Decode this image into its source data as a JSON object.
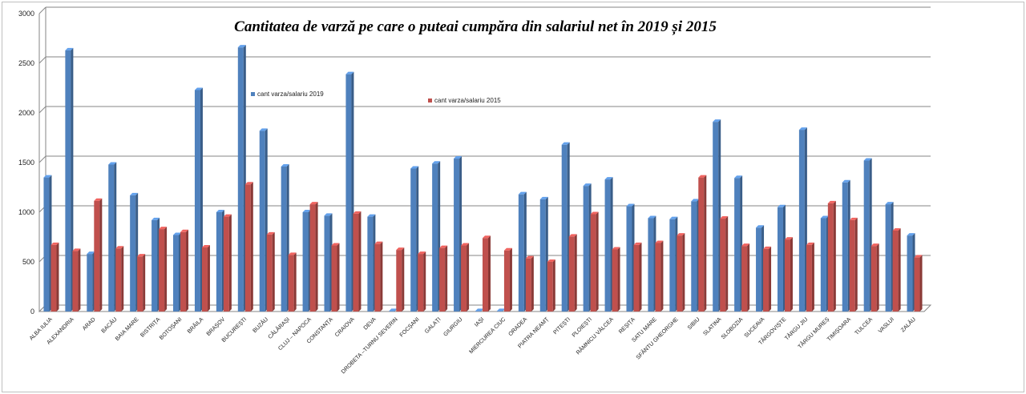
{
  "chart_data": {
    "type": "bar",
    "title": "Cantitatea de varză pe care o puteai cumpăra din salariul net în 2019 și 2015",
    "xlabel": "",
    "ylabel": "",
    "ylim": [
      0,
      3000
    ],
    "yticks": [
      0,
      500,
      1000,
      1500,
      2000,
      2500,
      3000
    ],
    "grid": true,
    "legend_position": "inside-top",
    "categories": [
      "ALBA IULIA",
      "ALEXANDRIA",
      "ARAD",
      "BACĂU",
      "BAIA MARE",
      "BISTRIȚA",
      "BOTOȘANI",
      "BRĂILA",
      "BRAȘOV",
      "BUCUREȘTI",
      "BUZĂU",
      "CĂLĂRAȘI",
      "CLUJ – NAPOCA",
      "CONSTANȚA",
      "CRAIOVA",
      "DEVA",
      "DROBETA –TURNU SEVERIN",
      "FOCȘANI",
      "GALAȚI",
      "GIURGIU",
      "IAȘI",
      "MIERCUREA CIUC",
      "ORADEA",
      "PIATRA NEAMȚ",
      "PITEȘTI",
      "PLOIEȘTI",
      "RÂMNICU VÂLCEA",
      "REȘIȚA",
      "SATU MARE",
      "SFÂNTU GHEORGHE",
      "SIBIU",
      "SLATINA",
      "SLOBOZIA",
      "SUCEAVA",
      "TÂRGOVIȘTE",
      "TÂRGU JIU",
      "TÂRGU MUREȘ",
      "TIMIȘOARA",
      "TULCEA",
      "VASLUI",
      "ZALĂU"
    ],
    "series": [
      {
        "name": "cant varza/salariu 2019",
        "color": "#4f81bd",
        "values": [
          1350,
          2630,
          580,
          1480,
          1170,
          920,
          770,
          2230,
          1000,
          2660,
          1820,
          1460,
          1000,
          965,
          2390,
          955,
          5,
          1440,
          1490,
          1540,
          5,
          5,
          1180,
          1130,
          1680,
          1265,
          1330,
          1060,
          940,
          930,
          1110,
          1910,
          1345,
          845,
          1050,
          1830,
          940,
          1300,
          1520,
          1080,
          765
        ]
      },
      {
        "name": "cant varza/salariu 2015",
        "color": "#c0504d",
        "values": [
          670,
          610,
          1115,
          635,
          555,
          830,
          800,
          645,
          955,
          1280,
          775,
          570,
          1080,
          665,
          985,
          680,
          620,
          580,
          640,
          665,
          740,
          615,
          535,
          500,
          755,
          980,
          625,
          670,
          690,
          765,
          1350,
          935,
          660,
          630,
          725,
          670,
          1090,
          920,
          660,
          815,
          545
        ]
      }
    ]
  }
}
